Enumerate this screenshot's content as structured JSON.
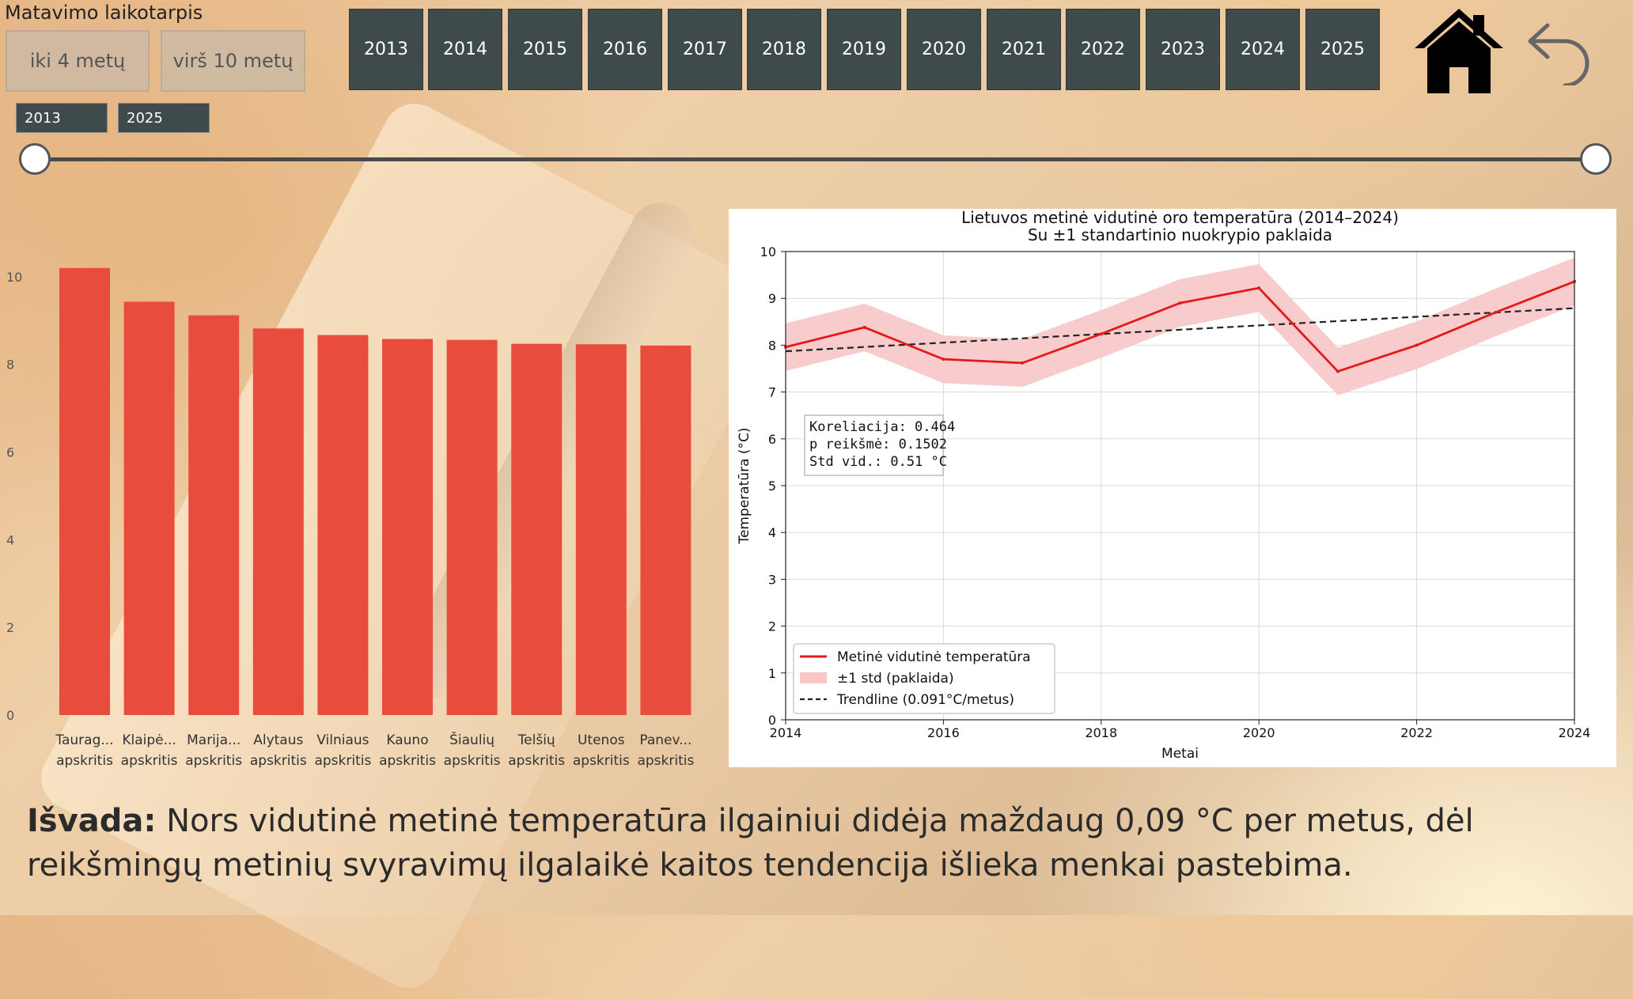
{
  "header": {
    "section_title": "Matavimo laikotarpis",
    "period_buttons": [
      "iki 4 metų",
      "virš 10 metų"
    ],
    "years": [
      "2013",
      "2014",
      "2015",
      "2016",
      "2017",
      "2018",
      "2019",
      "2020",
      "2021",
      "2022",
      "2023",
      "2024",
      "2025"
    ],
    "range_start": "2013",
    "range_end": "2025"
  },
  "chart_data": [
    {
      "type": "bar",
      "color": "#e84c3d",
      "categories": [
        [
          "Taurag...",
          "apskritis"
        ],
        [
          "Klaipė...",
          "apskritis"
        ],
        [
          "Marija...",
          "apskritis"
        ],
        [
          "Alytaus",
          "apskritis"
        ],
        [
          "Vilniaus",
          "apskritis"
        ],
        [
          "Kauno",
          "apskritis"
        ],
        [
          "Šiaulių",
          "apskritis"
        ],
        [
          "Telšių",
          "apskritis"
        ],
        [
          "Utenos",
          "apskritis"
        ],
        [
          "Panev...",
          "apskritis"
        ]
      ],
      "values": [
        10.2,
        9.43,
        9.12,
        8.82,
        8.67,
        8.58,
        8.56,
        8.47,
        8.46,
        8.43
      ],
      "yticks": [
        "0",
        "2",
        "4",
        "6",
        "8",
        "10"
      ],
      "ylim": [
        0,
        10.9
      ]
    },
    {
      "type": "line",
      "title": "Lietuvos metinė vidutinė oro temperatūra (2014–2024)",
      "subtitle": "Su ±1 standartinio nuokrypio paklaida",
      "xlabel": "Metai",
      "ylabel": "Temperatūra (°C)",
      "xlim": [
        2014,
        2024
      ],
      "ylim": [
        0,
        10
      ],
      "xticks": [
        "2014",
        "2016",
        "2018",
        "2020",
        "2022",
        "2024"
      ],
      "yticks": [
        "0",
        "1",
        "2",
        "3",
        "4",
        "5",
        "6",
        "7",
        "8",
        "9",
        "10"
      ],
      "grid": true,
      "x": [
        2014,
        2015,
        2016,
        2017,
        2018,
        2019,
        2020,
        2021,
        2022,
        2023,
        2024
      ],
      "series": [
        {
          "name": "Metinė vidutinė temperatūra",
          "color": "#e31a1c",
          "values": [
            7.96,
            8.38,
            7.7,
            7.62,
            8.24,
            8.9,
            9.22,
            7.44,
            8.0,
            8.7,
            9.36
          ]
        }
      ],
      "band": {
        "name": "±1 std (paklaida)",
        "color": "#f7c6c6",
        "halfwidth": 0.51
      },
      "trendline": {
        "name": "Trendline (0.091°C/metus)",
        "start": 7.87,
        "end": 8.79
      },
      "stats_box": [
        "Koreliacija: 0.464",
        "p reikšmė: 0.1502",
        "Std vid.: 0.51 °C"
      ],
      "legend_position": "lower-left"
    }
  ],
  "conclusion": {
    "label": "Išvada:",
    "text": " Nors vidutinė metinė temperatūra ilgainiui didėja maždaug 0,09 °C per metus, dėl reikšmingų metinių svyravimų ilgalaikė kaitos tendencija išlieka menkai pastebima."
  }
}
